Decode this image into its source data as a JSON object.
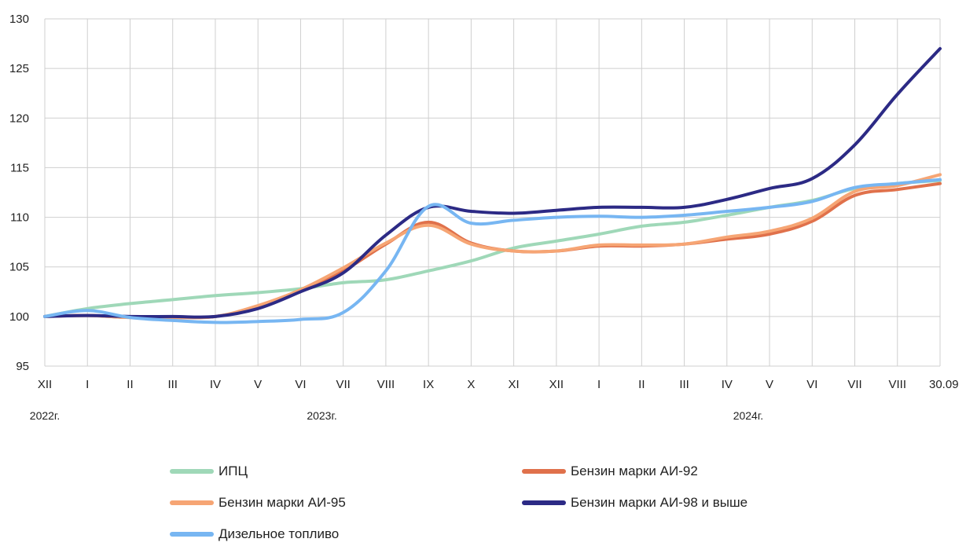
{
  "chart_data": {
    "type": "line",
    "title": "",
    "xlabel": "",
    "ylabel": "",
    "ylim": [
      95,
      130
    ],
    "yticks": [
      95,
      100,
      105,
      110,
      115,
      120,
      125,
      130
    ],
    "grid": true,
    "legend_position": "bottom",
    "categories": [
      "XII",
      "I",
      "II",
      "III",
      "IV",
      "V",
      "VI",
      "VII",
      "VIII",
      "IX",
      "X",
      "XI",
      "XII",
      "I",
      "II",
      "III",
      "IV",
      "V",
      "VI",
      "VII",
      "VIII",
      "30.09"
    ],
    "year_labels": [
      {
        "label": "2022г.",
        "category_index": 0
      },
      {
        "label": "2023г.",
        "category_index": 6.5
      },
      {
        "label": "2024г.",
        "category_index": 16.5
      }
    ],
    "series": [
      {
        "name": "ИПЦ",
        "color": "#9fd8b8",
        "values": [
          100,
          100.8,
          101.3,
          101.7,
          102.1,
          102.4,
          102.8,
          103.4,
          103.7,
          104.6,
          105.6,
          106.9,
          107.6,
          108.3,
          109.1,
          109.5,
          110.2,
          111.0,
          111.7,
          112.9,
          113.4,
          113.7
        ]
      },
      {
        "name": "Бензин марки АИ-92",
        "color": "#e0714b",
        "values": [
          100,
          100.1,
          99.9,
          99.9,
          100.0,
          101.0,
          102.6,
          104.6,
          107.3,
          109.5,
          107.4,
          106.6,
          106.6,
          107.1,
          107.1,
          107.3,
          107.8,
          108.3,
          109.6,
          112.2,
          112.8,
          113.4
        ]
      },
      {
        "name": "Бензин марки АИ-95",
        "color": "#f6a574",
        "values": [
          100,
          100.1,
          99.9,
          99.9,
          100.0,
          101.1,
          102.7,
          104.9,
          107.4,
          109.2,
          107.3,
          106.6,
          106.6,
          107.2,
          107.2,
          107.3,
          108.0,
          108.6,
          109.9,
          112.6,
          113.2,
          114.3
        ]
      },
      {
        "name": "Бензин марки АИ-98 и выше",
        "color": "#2c2a85",
        "values": [
          100,
          100.1,
          100.0,
          100.0,
          100.0,
          100.8,
          102.5,
          104.4,
          108.2,
          111.0,
          110.6,
          110.4,
          110.7,
          111.0,
          111.0,
          111.0,
          111.8,
          112.9,
          113.9,
          117.3,
          122.4,
          127.0
        ]
      },
      {
        "name": "Дизельное топливо",
        "color": "#77b6f2",
        "values": [
          100,
          100.6,
          99.9,
          99.6,
          99.4,
          99.5,
          99.7,
          100.4,
          104.6,
          111.1,
          109.4,
          109.7,
          110.0,
          110.1,
          110.0,
          110.2,
          110.6,
          111.0,
          111.6,
          113.0,
          113.4,
          113.8
        ]
      }
    ]
  }
}
